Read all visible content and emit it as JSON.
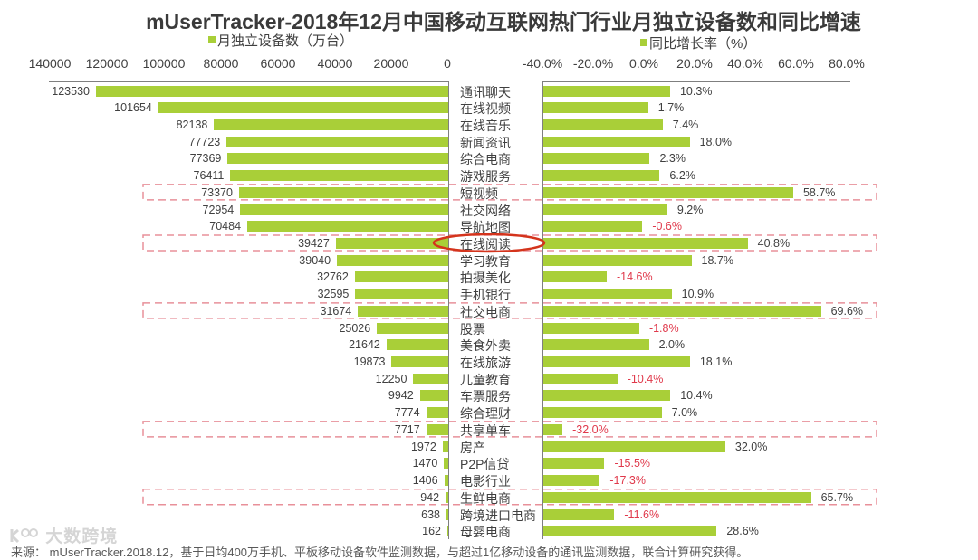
{
  "title": "mUserTracker-2018年12月中国移动互联网热门行业月独立设备数和同比增速",
  "legend": {
    "left": "月独立设备数（万台）",
    "right": "同比增长率（%）"
  },
  "axis": {
    "left_ticks": [
      "140000",
      "120000",
      "100000",
      "80000",
      "60000",
      "40000",
      "20000",
      "0"
    ],
    "right_ticks": [
      "-40.0%",
      "-20.0%",
      "0.0%",
      "20.0%",
      "40.0%",
      "60.0%",
      "80.0%"
    ]
  },
  "source": "来源： mUserTracker.2018.12，基于日均400万手机、平板移动设备软件监测数据，与超过1亿移动设备的通讯监测数据，联合计算研究获得。",
  "watermark": "大数跨境",
  "colors": {
    "bar": "#a9cf38",
    "label": "#404040",
    "negative_label": "#e0394b",
    "highlight_box": "#e8909a",
    "circle": "#d4341c",
    "axis": "#7f7f7f"
  },
  "chart_data": {
    "type": "bar",
    "orientation": "horizontal",
    "layout": "butterfly (two mirrored bar panels sharing category labels)",
    "title": "mUserTracker-2018年12月中国移动互联网热门行业月独立设备数和同比增速",
    "categories": [
      "通讯聊天",
      "在线视频",
      "在线音乐",
      "新闻资讯",
      "综合电商",
      "游戏服务",
      "短视频",
      "社交网络",
      "导航地图",
      "在线阅读",
      "学习教育",
      "拍摄美化",
      "手机银行",
      "社交电商",
      "股票",
      "美食外卖",
      "在线旅游",
      "儿童教育",
      "车票服务",
      "综合理财",
      "共享单车",
      "房产",
      "P2P信贷",
      "电影行业",
      "生鲜电商",
      "跨境进口电商",
      "母婴电商"
    ],
    "series": [
      {
        "name": "月独立设备数（万台）",
        "panel": "left",
        "values": [
          123530,
          101654,
          82138,
          77723,
          77369,
          76411,
          73370,
          72954,
          70484,
          39427,
          39040,
          32762,
          32595,
          31674,
          25026,
          21642,
          19873,
          12250,
          9942,
          7774,
          7717,
          1972,
          1470,
          1406,
          942,
          638,
          162
        ],
        "xlim": [
          0,
          140000
        ],
        "ticks": [
          140000,
          120000,
          100000,
          80000,
          60000,
          40000,
          20000,
          0
        ],
        "direction": "reversed"
      },
      {
        "name": "同比增长率（%）",
        "panel": "right",
        "unit": "%",
        "values": [
          10.3,
          1.7,
          7.4,
          18.0,
          2.3,
          6.2,
          58.7,
          9.2,
          -0.6,
          40.8,
          18.7,
          -14.6,
          10.9,
          69.6,
          -1.8,
          2.0,
          18.1,
          -10.4,
          10.4,
          7.0,
          -32.0,
          32.0,
          -15.5,
          -17.3,
          65.7,
          -11.6,
          28.6
        ],
        "xlim": [
          -40,
          80
        ],
        "ticks": [
          -40,
          -20,
          0,
          20,
          40,
          60,
          80
        ]
      }
    ],
    "annotations": {
      "highlighted_rows": [
        "短视频",
        "在线阅读",
        "社交电商",
        "共享单车",
        "生鲜电商"
      ],
      "circled_label": "在线阅读",
      "negative_values_colored_red": true
    },
    "xlabel": "",
    "ylabel": "",
    "grid": false,
    "legend_position": "top"
  }
}
